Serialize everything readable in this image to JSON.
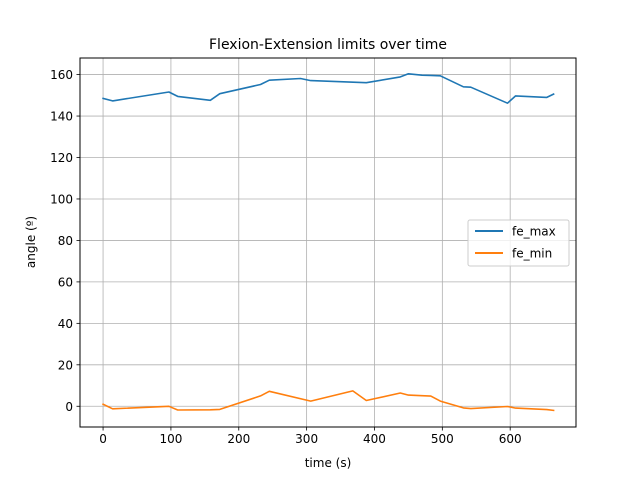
{
  "chart_data": {
    "type": "line",
    "title": "Flexion-Extension limits over time",
    "xlabel": "time (s)",
    "ylabel": "angle (º)",
    "xlim": [
      -34,
      697
    ],
    "ylim": [
      -10,
      168
    ],
    "xticks": [
      0,
      100,
      200,
      300,
      400,
      500,
      600
    ],
    "yticks": [
      0,
      20,
      40,
      60,
      80,
      100,
      120,
      140,
      160
    ],
    "grid": true,
    "legend_position": "center-right",
    "series": [
      {
        "name": "fe_max",
        "color": "#1f77b4",
        "x": [
          0,
          14,
          97,
          110,
          158,
          172,
          232,
          245,
          291,
          306,
          388,
          438,
          450,
          470,
          483,
          497,
          531,
          542,
          596,
          608,
          654,
          664
        ],
        "y": [
          148.5,
          147.3,
          151.6,
          149.5,
          147.6,
          150.8,
          155.2,
          157.3,
          158.1,
          157.1,
          156.1,
          158.9,
          160.4,
          159.7,
          159.6,
          159.4,
          154.1,
          153.9,
          146.2,
          149.7,
          149.0,
          150.6
        ]
      },
      {
        "name": "fe_min",
        "color": "#ff7f0e",
        "x": [
          0,
          14,
          97,
          110,
          158,
          172,
          232,
          245,
          306,
          368,
          388,
          438,
          450,
          470,
          483,
          497,
          531,
          542,
          596,
          608,
          654,
          664
        ],
        "y": [
          1.0,
          -1.2,
          0.0,
          -1.8,
          -1.7,
          -1.5,
          5.0,
          7.2,
          2.5,
          7.4,
          2.8,
          6.4,
          5.4,
          5.1,
          4.9,
          2.5,
          -0.8,
          -1.1,
          -0.1,
          -0.9,
          -1.6,
          -2.0
        ]
      }
    ]
  }
}
